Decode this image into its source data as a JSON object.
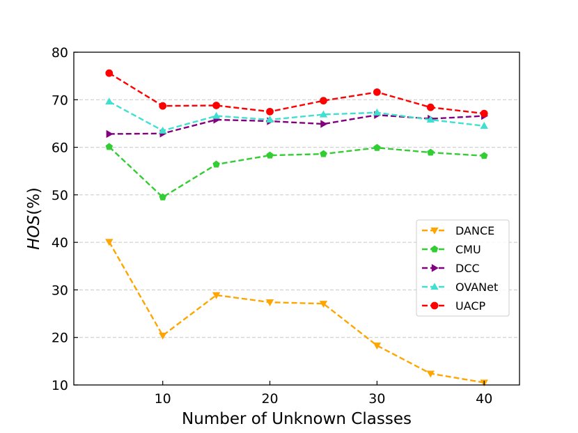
{
  "chart_data": {
    "type": "line",
    "title": "",
    "xlabel": "Number of Unknown Classes",
    "ylabel_main": "HOS",
    "ylabel_suffix": "(%)",
    "x": [
      5,
      10,
      15,
      20,
      25,
      30,
      35,
      40
    ],
    "xlim": [
      1.7,
      43.3
    ],
    "ylim": [
      10,
      80
    ],
    "xticks": [
      10,
      20,
      30,
      40
    ],
    "yticks": [
      10,
      20,
      30,
      40,
      50,
      60,
      70,
      80
    ],
    "xtick_labels": [
      "10",
      "20",
      "30",
      "40"
    ],
    "ytick_labels": [
      "10",
      "20",
      "30",
      "40",
      "50",
      "60",
      "70",
      "80"
    ],
    "grid": "horizontal dashed",
    "legend_position": "right",
    "series": [
      {
        "name": "DANCE",
        "color": "#FFA500",
        "marker": "triangle-down",
        "values": [
          40.1,
          20.4,
          28.9,
          27.4,
          27.1,
          18.3,
          12.4,
          10.5
        ]
      },
      {
        "name": "CMU",
        "color": "#32CD32",
        "marker": "pentagon",
        "values": [
          60.1,
          49.5,
          56.4,
          58.3,
          58.6,
          59.9,
          58.9,
          58.2
        ]
      },
      {
        "name": "DCC",
        "color": "#800080",
        "marker": "triangle-right",
        "values": [
          62.8,
          62.9,
          65.8,
          65.5,
          64.9,
          66.8,
          66.0,
          66.6
        ]
      },
      {
        "name": "OVANet",
        "color": "#40E0D0",
        "marker": "triangle-up",
        "values": [
          69.6,
          63.5,
          66.6,
          65.8,
          66.9,
          67.3,
          65.8,
          64.5
        ]
      },
      {
        "name": "UACP",
        "color": "#FF0000",
        "marker": "circle",
        "values": [
          75.6,
          68.7,
          68.8,
          67.5,
          69.8,
          71.6,
          68.4,
          67.1
        ]
      }
    ]
  }
}
